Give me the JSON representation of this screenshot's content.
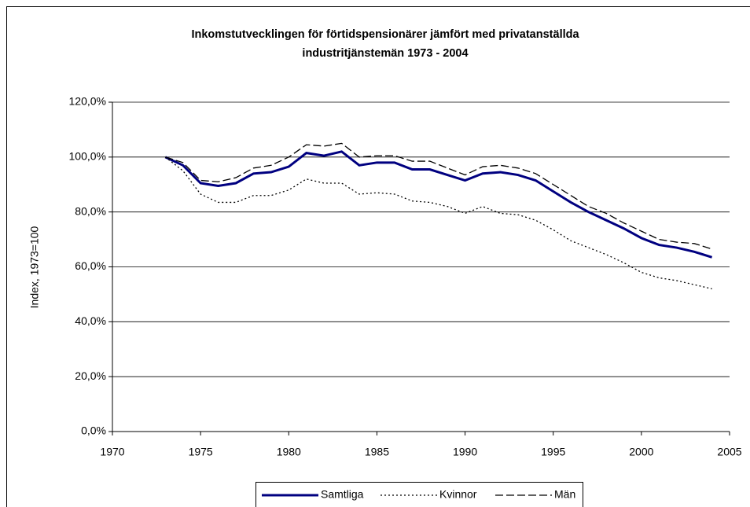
{
  "chart_data": {
    "type": "line",
    "title": [
      "Inkomstutvecklingen för förtidspensionärer jämfört med privatanställda",
      "industritjänstemän 1973 - 2004"
    ],
    "y_label": "Index, 1973=100",
    "x": [
      1973,
      1974,
      1975,
      1976,
      1977,
      1978,
      1979,
      1980,
      1981,
      1982,
      1983,
      1984,
      1985,
      1986,
      1987,
      1988,
      1989,
      1990,
      1991,
      1992,
      1993,
      1994,
      1995,
      1996,
      1997,
      1998,
      1999,
      2000,
      2001,
      2002,
      2003,
      2004
    ],
    "series": [
      {
        "name": "Samtliga",
        "color": "#000080",
        "style": "solid",
        "values": [
          100,
          97,
          90.5,
          89.5,
          90.5,
          94,
          94.5,
          96.5,
          101.5,
          100.5,
          102,
          97,
          98,
          98,
          95.5,
          95.5,
          93.5,
          91.5,
          94,
          94.5,
          93.5,
          91.5,
          87.5,
          83.5,
          80,
          77,
          74,
          70.5,
          68,
          67,
          65.5,
          63.5
        ]
      },
      {
        "name": "Kvinnor",
        "color": "#000000",
        "style": "dotted",
        "values": [
          100,
          95,
          86.5,
          83.5,
          83.5,
          86,
          86,
          88,
          92,
          90.5,
          90.5,
          86.5,
          87,
          86.5,
          84,
          83.5,
          82,
          79.5,
          82,
          79.5,
          79,
          77,
          73.5,
          69.5,
          67,
          64.5,
          61.5,
          58,
          56,
          55,
          53.5,
          52
        ]
      },
      {
        "name": "Män",
        "color": "#000000",
        "style": "dashed",
        "values": [
          100,
          98,
          91.5,
          91,
          92.5,
          96,
          97,
          100,
          104.5,
          104,
          105,
          100,
          100.5,
          100.5,
          98.5,
          98.5,
          96,
          93.5,
          96.5,
          97,
          96,
          94,
          90,
          86,
          82,
          79.5,
          76,
          73,
          70,
          69,
          68.5,
          66.5
        ]
      }
    ],
    "xlim": [
      1970,
      2005
    ],
    "xticks": [
      1970,
      1975,
      1980,
      1985,
      1990,
      1995,
      2000,
      2005
    ],
    "ylim": [
      0,
      120
    ],
    "yticks": [
      {
        "value": 0,
        "label": "0,0%"
      },
      {
        "value": 20,
        "label": "20,0%"
      },
      {
        "value": 40,
        "label": "40,0%"
      },
      {
        "value": 60,
        "label": "60,0%"
      },
      {
        "value": 80,
        "label": "80,0%"
      },
      {
        "value": 100,
        "label": "100,0%"
      },
      {
        "value": 120,
        "label": "120,0%"
      }
    ],
    "grid": true,
    "legend": "bottom"
  }
}
